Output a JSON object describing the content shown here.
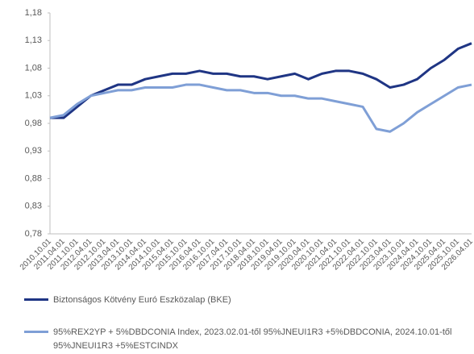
{
  "chart_data": {
    "type": "line",
    "categories": [
      "2010.10.01",
      "2011.04.01",
      "2011.10.01",
      "2012.04.01",
      "2012.10.01",
      "2013.04.01",
      "2013.10.01",
      "2014.04.01",
      "2014.10.01",
      "2015.04.01",
      "2015.10.01",
      "2016.04.01",
      "2016.10.01",
      "2017.04.01",
      "2017.10.01",
      "2018.04.01",
      "2018.10.01",
      "2019.04.01",
      "2019.10.01",
      "2020.04.01",
      "2020.10.01",
      "2021.04.01",
      "2021.10.01",
      "2022.04.01",
      "2022.10.01",
      "2023.04.01",
      "2023.10.01",
      "2024.04.01",
      "2024.10.01",
      "2025.04.01",
      "2025.10.01",
      "2026.04.01"
    ],
    "series": [
      {
        "name": "Biztonságos Kötvény Euró Eszközalap (BKE)",
        "color": "#1f3584",
        "values": [
          0.99,
          0.99,
          1.01,
          1.03,
          1.04,
          1.05,
          1.05,
          1.06,
          1.065,
          1.07,
          1.07,
          1.075,
          1.07,
          1.07,
          1.065,
          1.065,
          1.06,
          1.065,
          1.07,
          1.06,
          1.07,
          1.075,
          1.075,
          1.07,
          1.06,
          1.045,
          1.05,
          1.06,
          1.08,
          1.095,
          1.115,
          1.125
        ]
      },
      {
        "name": "95%REX2YP + 5%DBDCONIA Index, 2023.02.01-től 95%JNEUI1R3 +5%DBDCONIA, 2024.10.01-től 95%JNEUI1R3 +5%ESTCINDX",
        "color": "#7f9fd6",
        "values": [
          0.99,
          0.995,
          1.015,
          1.03,
          1.035,
          1.04,
          1.04,
          1.045,
          1.045,
          1.045,
          1.05,
          1.05,
          1.045,
          1.04,
          1.04,
          1.035,
          1.035,
          1.03,
          1.03,
          1.025,
          1.025,
          1.02,
          1.015,
          1.01,
          0.97,
          0.965,
          0.98,
          1.0,
          1.015,
          1.03,
          1.045,
          1.05
        ]
      }
    ],
    "ylim": [
      0.78,
      1.18
    ],
    "yticks": [
      {
        "value": 0.78,
        "label": "0,78"
      },
      {
        "value": 0.83,
        "label": "0,83"
      },
      {
        "value": 0.88,
        "label": "0,88"
      },
      {
        "value": 0.93,
        "label": "0,93"
      },
      {
        "value": 0.98,
        "label": "0,98"
      },
      {
        "value": 1.03,
        "label": "1,03"
      },
      {
        "value": 1.08,
        "label": "1,08"
      },
      {
        "value": 1.13,
        "label": "1,13"
      },
      {
        "value": 1.18,
        "label": "1,18"
      }
    ],
    "grid": false,
    "legend": "bottom"
  }
}
